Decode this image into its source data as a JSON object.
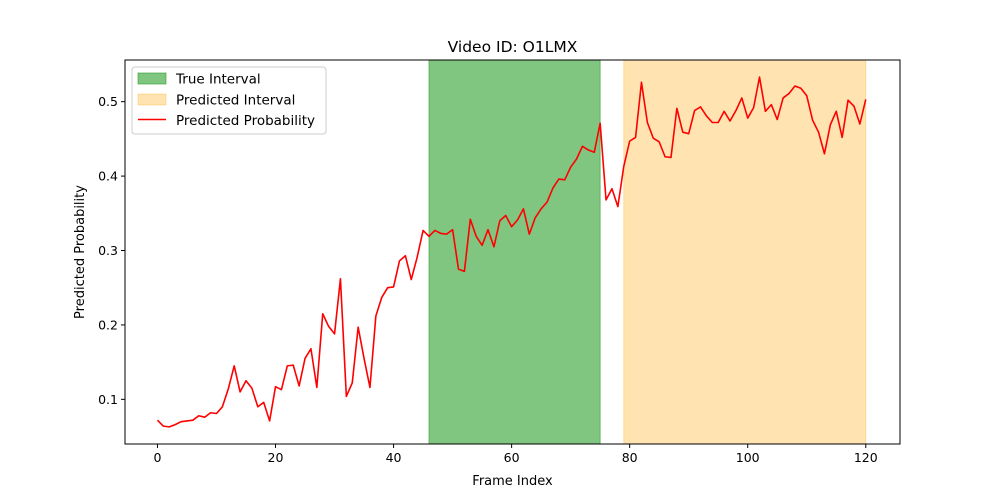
{
  "chart_data": {
    "type": "line",
    "title": "Video ID: O1LMX",
    "xlabel": "Frame Index",
    "ylabel": "Predicted Probability",
    "xlim": [
      -5.5,
      125.8
    ],
    "ylim": [
      0.04,
      0.556
    ],
    "xticks": [
      0,
      20,
      40,
      60,
      80,
      100,
      120
    ],
    "yticks": [
      0.1,
      0.2,
      0.3,
      0.4,
      0.5
    ],
    "ytick_labels": [
      "0.1",
      "0.2",
      "0.3",
      "0.4",
      "0.5"
    ],
    "grid": false,
    "legend": {
      "position": "upper-left",
      "entries": [
        "True Interval",
        "Predicted Interval",
        "Predicted Probability"
      ]
    },
    "intervals": [
      {
        "name": "True Interval",
        "start": 46,
        "end": 75,
        "color": "#2ca02c",
        "alpha": 0.6
      },
      {
        "name": "Predicted Interval",
        "start": 79,
        "end": 120,
        "color": "#ffa500",
        "alpha": 0.3
      }
    ],
    "series": [
      {
        "name": "Predicted Probability",
        "color": "#ff0000",
        "x": [
          0,
          1,
          2,
          3,
          4,
          5,
          6,
          7,
          8,
          9,
          10,
          11,
          12,
          13,
          14,
          15,
          16,
          17,
          18,
          19,
          20,
          21,
          22,
          23,
          24,
          25,
          26,
          27,
          28,
          29,
          30,
          31,
          32,
          33,
          34,
          35,
          36,
          37,
          38,
          39,
          40,
          41,
          42,
          43,
          44,
          45,
          46,
          47,
          48,
          49,
          50,
          51,
          52,
          53,
          54,
          55,
          56,
          57,
          58,
          59,
          60,
          61,
          62,
          63,
          64,
          65,
          66,
          67,
          68,
          69,
          70,
          71,
          72,
          73,
          74,
          75,
          76,
          77,
          78,
          79,
          80,
          81,
          82,
          83,
          84,
          85,
          86,
          87,
          88,
          89,
          90,
          91,
          92,
          93,
          94,
          95,
          96,
          97,
          98,
          99,
          100,
          101,
          102,
          103,
          104,
          105,
          106,
          107,
          108,
          109,
          110,
          111,
          112,
          113,
          114,
          115,
          116,
          117,
          118,
          119,
          120
        ],
        "y": [
          0.072,
          0.064,
          0.063,
          0.066,
          0.07,
          0.071,
          0.072,
          0.078,
          0.076,
          0.082,
          0.081,
          0.09,
          0.114,
          0.145,
          0.11,
          0.125,
          0.115,
          0.09,
          0.096,
          0.071,
          0.117,
          0.113,
          0.145,
          0.146,
          0.118,
          0.155,
          0.168,
          0.116,
          0.215,
          0.198,
          0.188,
          0.262,
          0.104,
          0.122,
          0.197,
          0.155,
          0.116,
          0.212,
          0.237,
          0.25,
          0.251,
          0.286,
          0.293,
          0.261,
          0.291,
          0.327,
          0.319,
          0.327,
          0.323,
          0.322,
          0.328,
          0.275,
          0.272,
          0.342,
          0.319,
          0.307,
          0.328,
          0.305,
          0.34,
          0.347,
          0.332,
          0.341,
          0.356,
          0.322,
          0.344,
          0.356,
          0.365,
          0.384,
          0.396,
          0.395,
          0.412,
          0.423,
          0.44,
          0.435,
          0.432,
          0.471,
          0.368,
          0.383,
          0.359,
          0.413,
          0.447,
          0.452,
          0.526,
          0.472,
          0.451,
          0.446,
          0.426,
          0.425,
          0.491,
          0.459,
          0.457,
          0.488,
          0.493,
          0.481,
          0.472,
          0.472,
          0.487,
          0.474,
          0.488,
          0.505,
          0.478,
          0.492,
          0.533,
          0.487,
          0.496,
          0.476,
          0.505,
          0.511,
          0.521,
          0.518,
          0.508,
          0.475,
          0.459,
          0.43,
          0.469,
          0.487,
          0.452,
          0.502,
          0.494,
          0.47,
          0.503
        ]
      }
    ]
  }
}
